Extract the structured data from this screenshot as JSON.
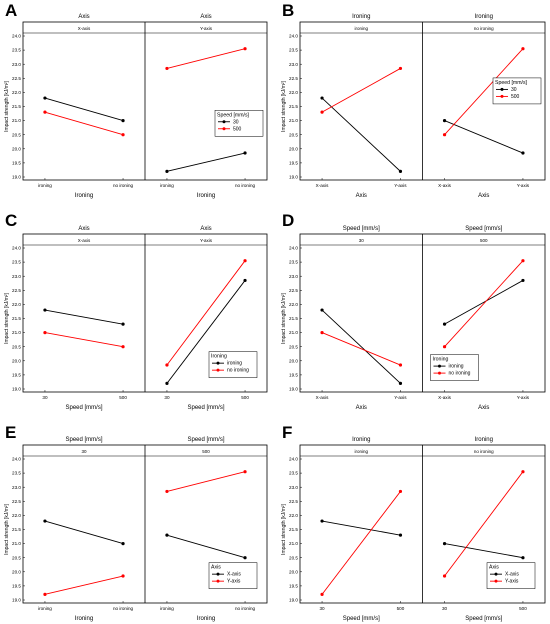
{
  "figure": {
    "y_axis_label": "Impact strength [kJ/m²]",
    "y_ticks": [
      "19.0",
      "19.5",
      "20.0",
      "20.5",
      "21.0",
      "21.5",
      "22.0",
      "22.5",
      "23.0",
      "23.5",
      "24.0"
    ]
  },
  "chart_data": [
    {
      "letter": "A",
      "type": "line",
      "facet_title": "Axis",
      "facets": [
        "X-axis",
        "Y-axis"
      ],
      "xlabel": "Ironing",
      "categories": [
        "ironing",
        "no ironing"
      ],
      "ylabel": "Impact strength [kJ/m²]",
      "ylim": [
        19.0,
        24.0
      ],
      "legend": {
        "title": "Speed [mm/s]",
        "position": "center-right"
      },
      "series": [
        {
          "name": "30",
          "color": "#000000",
          "values": [
            [
              21.8,
              21.0
            ],
            [
              19.2,
              19.85
            ]
          ]
        },
        {
          "name": "500",
          "color": "#ff0000",
          "values": [
            [
              21.3,
              20.5
            ],
            [
              22.85,
              23.55
            ]
          ]
        }
      ]
    },
    {
      "letter": "B",
      "type": "line",
      "facet_title": "Ironing",
      "facets": [
        "ironing",
        "no ironing"
      ],
      "xlabel": "Axis",
      "categories": [
        "X-axis",
        "Y-axis"
      ],
      "ylabel": "Impact strength [kJ/m²]",
      "ylim": [
        19.0,
        24.0
      ],
      "legend": {
        "title": "Speed [mm/s]",
        "position": "top-right"
      },
      "series": [
        {
          "name": "30",
          "color": "#000000",
          "values": [
            [
              21.8,
              19.2
            ],
            [
              21.0,
              19.85
            ]
          ]
        },
        {
          "name": "500",
          "color": "#ff0000",
          "values": [
            [
              21.3,
              22.85
            ],
            [
              20.5,
              23.55
            ]
          ]
        }
      ]
    },
    {
      "letter": "C",
      "type": "line",
      "facet_title": "Axis",
      "facets": [
        "X-axis",
        "Y-axis"
      ],
      "xlabel": "Speed [mm/s]",
      "categories": [
        "30",
        "500"
      ],
      "ylabel": "Impact strength [kJ/m²]",
      "ylim": [
        19.0,
        24.0
      ],
      "legend": {
        "title": "Ironing",
        "position": "bottom-right"
      },
      "series": [
        {
          "name": "ironing",
          "color": "#000000",
          "values": [
            [
              21.8,
              21.3
            ],
            [
              19.2,
              22.85
            ]
          ]
        },
        {
          "name": "no ironing",
          "color": "#ff0000",
          "values": [
            [
              21.0,
              20.5
            ],
            [
              19.85,
              23.55
            ]
          ]
        }
      ]
    },
    {
      "letter": "D",
      "type": "line",
      "facet_title": "Speed [mm/s]",
      "facets": [
        "30",
        "500"
      ],
      "xlabel": "Axis",
      "categories": [
        "X-axis",
        "Y-axis"
      ],
      "ylabel": "Impact strength [kJ/m²]",
      "ylim": [
        19.0,
        24.0
      ],
      "legend": {
        "title": "Ironing",
        "position": "bottom-left"
      },
      "series": [
        {
          "name": "ironing",
          "color": "#000000",
          "values": [
            [
              21.8,
              19.2
            ],
            [
              21.3,
              22.85
            ]
          ]
        },
        {
          "name": "no ironing",
          "color": "#ff0000",
          "values": [
            [
              21.0,
              19.85
            ],
            [
              20.5,
              23.55
            ]
          ]
        }
      ]
    },
    {
      "letter": "E",
      "type": "line",
      "facet_title": "Speed [mm/s]",
      "facets": [
        "30",
        "500"
      ],
      "xlabel": "Ironing",
      "categories": [
        "ironing",
        "no ironing"
      ],
      "ylabel": "Impact strength [kJ/m²]",
      "ylim": [
        19.0,
        24.0
      ],
      "legend": {
        "title": "Axis",
        "position": "bottom-right"
      },
      "series": [
        {
          "name": "X-axis",
          "color": "#000000",
          "values": [
            [
              21.8,
              21.0
            ],
            [
              21.3,
              20.5
            ]
          ]
        },
        {
          "name": "Y-axis",
          "color": "#ff0000",
          "values": [
            [
              19.2,
              19.85
            ],
            [
              22.85,
              23.55
            ]
          ]
        }
      ]
    },
    {
      "letter": "F",
      "type": "line",
      "facet_title": "Ironing",
      "facets": [
        "ironing",
        "no ironing"
      ],
      "xlabel": "Speed [mm/s]",
      "categories": [
        "30",
        "500"
      ],
      "ylabel": "Impact strength [kJ/m²]",
      "ylim": [
        19.0,
        24.0
      ],
      "legend": {
        "title": "Axis",
        "position": "bottom-right"
      },
      "series": [
        {
          "name": "X-axis",
          "color": "#000000",
          "values": [
            [
              21.8,
              21.3
            ],
            [
              21.0,
              20.5
            ]
          ]
        },
        {
          "name": "Y-axis",
          "color": "#ff0000",
          "values": [
            [
              19.2,
              22.85
            ],
            [
              19.85,
              23.55
            ]
          ]
        }
      ]
    }
  ]
}
